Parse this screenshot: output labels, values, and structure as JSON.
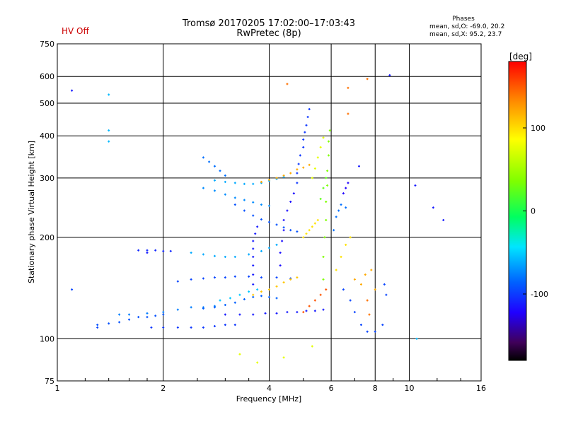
{
  "header": {
    "hv_status": "HV Off",
    "title_line1": "Tromsø 20170205 17:02:00–17:03:43",
    "title_line2": "RwPretec (8p)",
    "phases_title": "Phases",
    "phases_o": "mean, sd,O: -69.0, 20.2",
    "phases_x": "mean, sd,X:  95.2, 23.7"
  },
  "chart_data": {
    "type": "scatter",
    "title": "Tromsø 20170205 17:02:00–17:03:43",
    "subtitle": "RwPretec (8p)",
    "xlabel": "Frequency [MHz]",
    "ylabel": "Stationary phase Virtual Height [km]",
    "x_scale": "log",
    "y_scale": "log",
    "xlim": [
      1,
      16
    ],
    "ylim": [
      75,
      750
    ],
    "xticks": [
      1,
      2,
      4,
      6,
      8,
      10,
      16
    ],
    "yticks": [
      75,
      100,
      200,
      300,
      400,
      500,
      600,
      750
    ],
    "grid": true,
    "colorbar": {
      "label": "[deg]",
      "range": [
        -180,
        180
      ],
      "ticks": [
        100,
        0,
        -100
      ]
    },
    "traces": [
      {
        "name": "",
        "phase": -100,
        "points": [
          [
            1.85,
            108
          ],
          [
            2.0,
            108
          ],
          [
            2.2,
            108
          ],
          [
            2.4,
            108
          ],
          [
            2.6,
            108
          ],
          [
            2.8,
            109
          ],
          [
            3.0,
            110
          ],
          [
            3.2,
            110
          ]
        ]
      },
      {
        "name": "",
        "phase": -90,
        "points": [
          [
            1.3,
            110
          ],
          [
            1.4,
            111
          ],
          [
            1.5,
            112
          ],
          [
            1.6,
            114
          ],
          [
            1.7,
            116
          ],
          [
            1.8,
            116
          ],
          [
            1.9,
            117
          ],
          [
            2.0,
            118
          ]
        ]
      },
      {
        "name": "",
        "phase": -75,
        "points": [
          [
            1.5,
            118
          ],
          [
            1.6,
            118
          ],
          [
            1.8,
            119
          ],
          [
            2.0,
            120
          ],
          [
            2.2,
            122
          ],
          [
            2.4,
            124
          ],
          [
            2.6,
            124
          ],
          [
            2.8,
            125
          ]
        ]
      },
      {
        "name": "",
        "phase": -110,
        "points": [
          [
            3.0,
            118
          ],
          [
            3.3,
            118
          ],
          [
            3.6,
            118
          ],
          [
            3.9,
            119
          ],
          [
            4.2,
            119
          ],
          [
            4.5,
            120
          ],
          [
            4.8,
            120
          ],
          [
            5.1,
            121
          ],
          [
            5.4,
            121
          ],
          [
            5.7,
            122
          ]
        ]
      },
      {
        "name": "",
        "phase": -85,
        "points": [
          [
            2.6,
            123
          ],
          [
            2.8,
            124
          ],
          [
            3.0,
            126
          ],
          [
            3.2,
            128
          ],
          [
            3.4,
            131
          ],
          [
            3.6,
            133
          ],
          [
            3.8,
            134
          ],
          [
            4.0,
            133
          ],
          [
            4.2,
            132
          ]
        ]
      },
      {
        "name": "",
        "phase": -95,
        "points": [
          [
            2.2,
            148
          ],
          [
            2.4,
            150
          ],
          [
            2.6,
            151
          ],
          [
            2.8,
            152
          ],
          [
            3.0,
            152
          ],
          [
            3.2,
            153
          ],
          [
            3.5,
            153
          ],
          [
            3.8,
            152
          ],
          [
            4.2,
            152
          ],
          [
            4.6,
            151
          ]
        ]
      },
      {
        "name": "",
        "phase": -105,
        "points": [
          [
            1.7,
            183
          ],
          [
            1.8,
            183
          ],
          [
            1.9,
            183
          ],
          [
            2.0,
            182
          ],
          [
            2.1,
            182
          ]
        ]
      },
      {
        "name": "",
        "phase": -60,
        "points": [
          [
            2.4,
            180
          ],
          [
            2.6,
            178
          ],
          [
            2.8,
            176
          ],
          [
            3.0,
            175
          ],
          [
            3.2,
            175
          ],
          [
            3.5,
            178
          ],
          [
            3.8,
            182
          ],
          [
            4.0,
            186
          ],
          [
            4.2,
            190
          ]
        ]
      },
      {
        "name": "",
        "phase": -110,
        "points": [
          [
            3.6,
            145
          ],
          [
            3.6,
            155
          ],
          [
            3.6,
            165
          ],
          [
            3.6,
            175
          ],
          [
            3.6,
            185
          ],
          [
            3.6,
            195
          ],
          [
            3.65,
            205
          ],
          [
            3.7,
            215
          ]
        ]
      },
      {
        "name": "",
        "phase": -115,
        "points": [
          [
            4.3,
            165
          ],
          [
            4.3,
            180
          ],
          [
            4.35,
            195
          ],
          [
            4.4,
            210
          ],
          [
            4.4,
            225
          ],
          [
            4.5,
            240
          ],
          [
            4.6,
            255
          ],
          [
            4.7,
            270
          ]
        ]
      },
      {
        "name": "",
        "phase": -60,
        "points": [
          [
            2.8,
            295
          ],
          [
            3.0,
            292
          ],
          [
            3.2,
            290
          ],
          [
            3.4,
            288
          ],
          [
            3.6,
            288
          ],
          [
            3.8,
            290
          ],
          [
            4.0,
            294
          ],
          [
            4.2,
            298
          ],
          [
            4.4,
            302
          ]
        ]
      },
      {
        "name": "",
        "phase": -70,
        "points": [
          [
            2.6,
            280
          ],
          [
            2.8,
            275
          ],
          [
            3.0,
            268
          ],
          [
            3.2,
            262
          ],
          [
            3.4,
            258
          ],
          [
            3.6,
            254
          ],
          [
            3.8,
            250
          ],
          [
            4.0,
            248
          ]
        ]
      },
      {
        "name": "",
        "phase": -80,
        "points": [
          [
            2.6,
            345
          ],
          [
            2.7,
            335
          ],
          [
            2.8,
            325
          ],
          [
            2.9,
            315
          ],
          [
            3.0,
            305
          ]
        ]
      },
      {
        "name": "",
        "phase": -90,
        "points": [
          [
            3.2,
            250
          ],
          [
            3.4,
            240
          ],
          [
            3.6,
            232
          ],
          [
            3.8,
            226
          ],
          [
            4.0,
            222
          ],
          [
            4.2,
            218
          ],
          [
            4.4,
            214
          ],
          [
            4.6,
            210
          ],
          [
            4.8,
            208
          ]
        ]
      },
      {
        "name": "",
        "phase": -100,
        "points": [
          [
            4.8,
            290
          ],
          [
            4.8,
            310
          ],
          [
            4.85,
            330
          ],
          [
            4.9,
            350
          ],
          [
            5.0,
            370
          ],
          [
            5.0,
            390
          ],
          [
            5.05,
            410
          ],
          [
            5.1,
            430
          ],
          [
            5.15,
            455
          ],
          [
            5.2,
            480
          ]
        ]
      },
      {
        "name": "",
        "phase": 40,
        "points": [
          [
            5.7,
            150
          ],
          [
            5.7,
            175
          ],
          [
            5.75,
            200
          ],
          [
            5.8,
            225
          ],
          [
            5.8,
            255
          ],
          [
            5.85,
            285
          ],
          [
            5.85,
            315
          ],
          [
            5.9,
            350
          ],
          [
            5.9,
            385
          ],
          [
            5.95,
            415
          ]
        ]
      },
      {
        "name": "",
        "phase": 80,
        "points": [
          [
            5.3,
            300
          ],
          [
            5.4,
            320
          ],
          [
            5.5,
            345
          ],
          [
            5.6,
            370
          ],
          [
            5.7,
            395
          ]
        ]
      },
      {
        "name": "",
        "phase": 100,
        "points": [
          [
            5.0,
            200
          ],
          [
            5.1,
            205
          ],
          [
            5.2,
            210
          ],
          [
            5.3,
            215
          ],
          [
            5.4,
            220
          ],
          [
            5.5,
            225
          ]
        ]
      },
      {
        "name": "",
        "phase": 120,
        "points": [
          [
            3.8,
            292
          ],
          [
            4.0,
            296
          ],
          [
            4.2,
            300
          ],
          [
            4.4,
            305
          ],
          [
            4.6,
            310
          ],
          [
            4.8,
            318
          ],
          [
            5.0,
            322
          ],
          [
            5.2,
            328
          ]
        ]
      },
      {
        "name": "",
        "phase": 110,
        "points": [
          [
            3.6,
            135
          ],
          [
            3.8,
            138
          ],
          [
            4.0,
            140
          ],
          [
            4.2,
            143
          ],
          [
            4.4,
            147
          ],
          [
            4.6,
            150
          ],
          [
            4.8,
            152
          ]
        ]
      },
      {
        "name": "",
        "phase": 150,
        "points": [
          [
            5.0,
            120
          ],
          [
            5.2,
            125
          ],
          [
            5.4,
            130
          ],
          [
            5.6,
            135
          ],
          [
            5.8,
            140
          ]
        ]
      },
      {
        "name": "",
        "phase": -50,
        "points": [
          [
            2.9,
            130
          ],
          [
            3.1,
            132
          ],
          [
            3.3,
            135
          ],
          [
            3.5,
            138
          ],
          [
            3.7,
            140
          ]
        ]
      },
      {
        "name": "",
        "phase": -120,
        "points": [
          [
            6.5,
            270
          ],
          [
            6.6,
            280
          ],
          [
            6.7,
            290
          ]
        ]
      },
      {
        "name": "",
        "phase": -110,
        "points": [
          [
            1.1,
            545
          ],
          [
            1.8,
            180
          ],
          [
            7.2,
            325
          ],
          [
            8.8,
            605
          ],
          [
            12.5,
            225
          ],
          [
            11.7,
            245
          ],
          [
            10.4,
            285
          ]
        ]
      },
      {
        "name": "",
        "phase": -55,
        "points": [
          [
            1.4,
            530
          ],
          [
            1.4,
            415
          ],
          [
            1.4,
            385
          ],
          [
            10.5,
            100
          ]
        ]
      },
      {
        "name": "",
        "phase": 140,
        "points": [
          [
            4.5,
            570
          ],
          [
            6.7,
            555
          ],
          [
            6.7,
            465
          ],
          [
            7.6,
            590
          ],
          [
            7.6,
            130
          ],
          [
            7.7,
            118
          ]
        ]
      },
      {
        "name": "",
        "phase": 120,
        "points": [
          [
            7.0,
            150
          ],
          [
            7.3,
            145
          ],
          [
            7.5,
            155
          ],
          [
            7.8,
            160
          ],
          [
            8.0,
            140
          ]
        ]
      },
      {
        "name": "",
        "phase": 80,
        "points": [
          [
            3.3,
            90
          ],
          [
            3.7,
            85
          ],
          [
            4.4,
            88
          ],
          [
            5.3,
            95
          ]
        ]
      },
      {
        "name": "",
        "phase": -95,
        "points": [
          [
            6.5,
            140
          ],
          [
            6.8,
            130
          ],
          [
            7.0,
            120
          ],
          [
            7.3,
            110
          ],
          [
            7.6,
            105
          ],
          [
            8.0,
            105
          ],
          [
            8.4,
            110
          ]
        ]
      },
      {
        "name": "",
        "phase": -80,
        "points": [
          [
            6.1,
            210
          ],
          [
            6.2,
            230
          ],
          [
            6.4,
            250
          ],
          [
            6.6,
            245
          ],
          [
            6.3,
            240
          ]
        ]
      },
      {
        "name": "",
        "phase": -95,
        "points": [
          [
            1.1,
            140
          ],
          [
            1.3,
            108
          ],
          [
            8.5,
            145
          ],
          [
            8.6,
            135
          ]
        ]
      },
      {
        "name": "",
        "phase": 30,
        "points": [
          [
            5.6,
            260
          ],
          [
            5.7,
            280
          ],
          [
            5.8,
            300
          ]
        ]
      },
      {
        "name": "",
        "phase": 100,
        "points": [
          [
            6.2,
            160
          ],
          [
            6.4,
            175
          ],
          [
            6.6,
            190
          ],
          [
            6.8,
            200
          ]
        ]
      }
    ]
  }
}
